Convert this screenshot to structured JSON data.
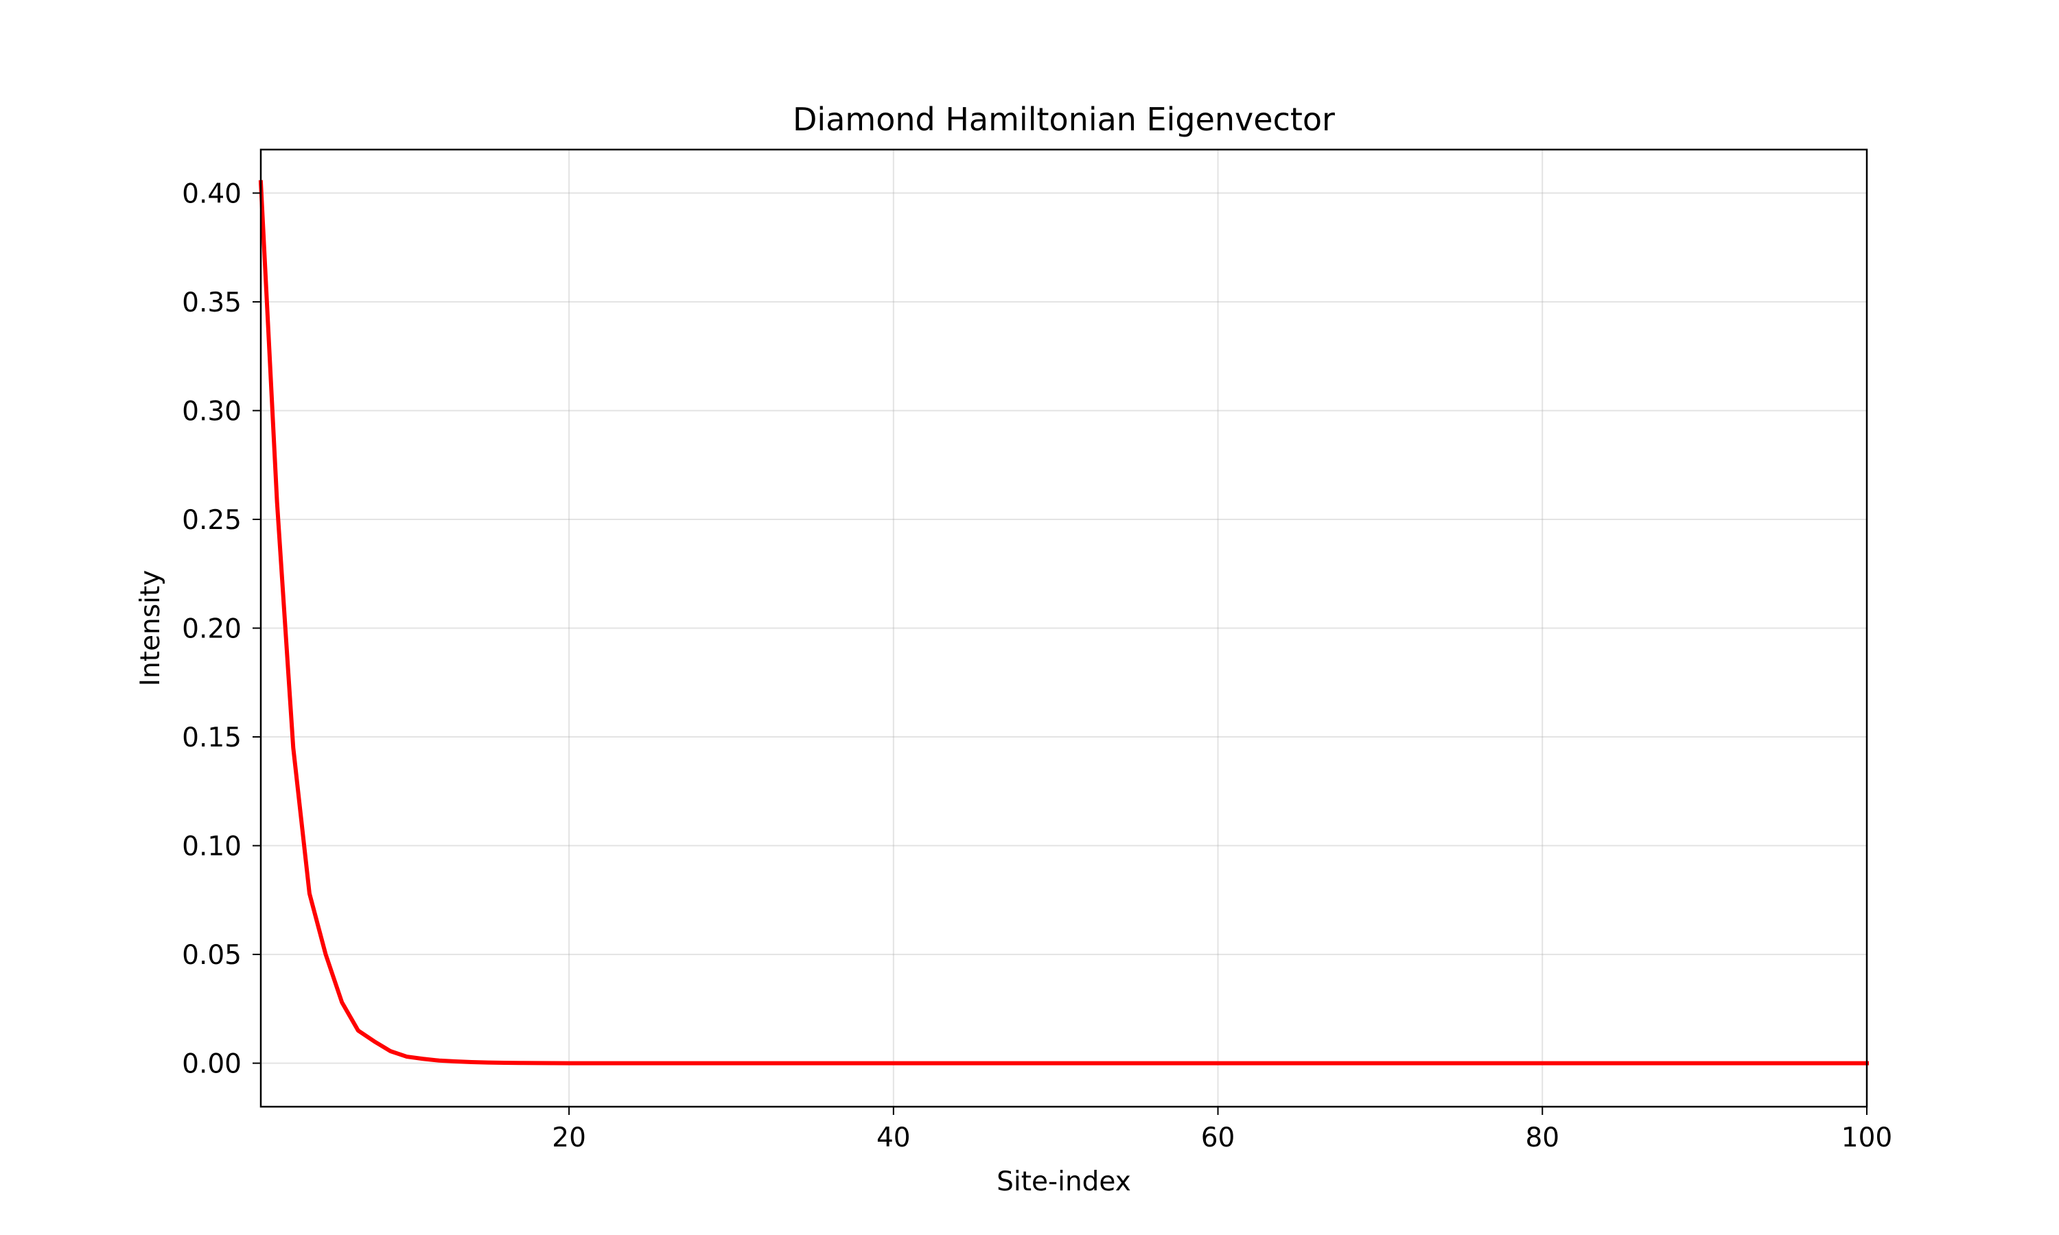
{
  "chart_data": {
    "type": "line",
    "title": "Diamond Hamiltonian Eigenvector",
    "xlabel": "Site-index",
    "ylabel": "Intensity",
    "xlim": [
      1,
      100
    ],
    "ylim": [
      -0.02,
      0.42
    ],
    "grid": true,
    "legend": "none",
    "x_ticks": [
      20,
      40,
      60,
      80,
      100
    ],
    "x_tick_labels": [
      "20",
      "40",
      "60",
      "80",
      "100"
    ],
    "y_ticks": [
      0.0,
      0.05,
      0.1,
      0.15,
      0.2,
      0.25,
      0.3,
      0.35,
      0.4
    ],
    "y_tick_labels": [
      "0.00",
      "0.05",
      "0.10",
      "0.15",
      "0.20",
      "0.25",
      "0.30",
      "0.35",
      "0.40"
    ],
    "series": [
      {
        "color": "#ff0000",
        "x": [
          1,
          2,
          3,
          4,
          5,
          6,
          7,
          8,
          9,
          10,
          11,
          12,
          13,
          14,
          15,
          16,
          17,
          18,
          19,
          20,
          25,
          30,
          35,
          40,
          45,
          50,
          55,
          60,
          65,
          70,
          75,
          80,
          85,
          90,
          95,
          100
        ],
        "y": [
          0.405,
          0.258,
          0.145,
          0.078,
          0.05,
          0.028,
          0.015,
          0.01,
          0.0055,
          0.003,
          0.002,
          0.0012,
          0.0008,
          0.0005,
          0.0003,
          0.0002,
          0.0001,
          5e-05,
          2e-05,
          0.0,
          0.0,
          0.0,
          0.0,
          0.0,
          0.0,
          0.0,
          0.0,
          0.0,
          0.0,
          0.0,
          0.0,
          0.0,
          0.0,
          0.0,
          0.0,
          0.0
        ]
      }
    ]
  }
}
